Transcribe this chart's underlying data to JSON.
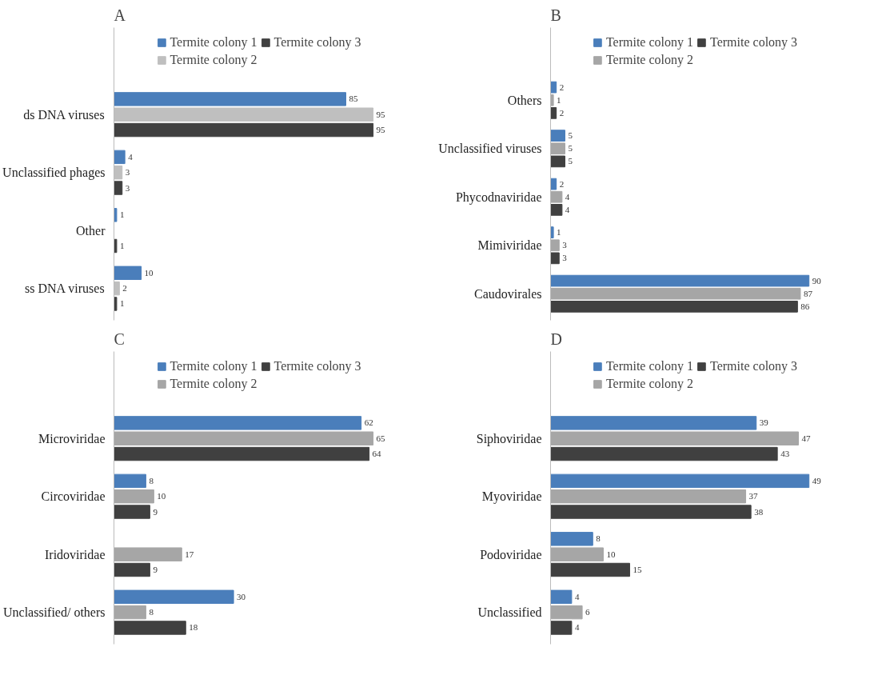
{
  "chart_data": [
    {
      "type": "bar",
      "orientation": "horizontal",
      "title": "A",
      "categories": [
        "ds DNA viruses",
        "Unclassified phages",
        "Other",
        "ss DNA viruses"
      ],
      "data_labels": true,
      "legend": "top",
      "grid": false,
      "series": [
        {
          "name": "Termite colony 1",
          "color": "#4a7ebb",
          "values": [
            85,
            4,
            1,
            10
          ]
        },
        {
          "name": "Termite colony 2",
          "color": "#bfbfbf",
          "values": [
            95,
            3,
            null,
            2
          ]
        },
        {
          "name": "Termite colony 3",
          "color": "#404040",
          "values": [
            95,
            3,
            1,
            1
          ]
        }
      ]
    },
    {
      "type": "bar",
      "orientation": "horizontal",
      "title": "B",
      "categories": [
        "Others",
        "Unclassified viruses",
        "Phycodnaviridae",
        "Mimiviridae",
        "Caudovirales"
      ],
      "data_labels": true,
      "legend": "top",
      "grid": false,
      "series": [
        {
          "name": "Termite colony 1",
          "color": "#4a7ebb",
          "values": [
            2,
            5,
            2,
            1,
            90
          ]
        },
        {
          "name": "Termite colony 2",
          "color": "#a6a6a6",
          "values": [
            1,
            5,
            4,
            3,
            87
          ]
        },
        {
          "name": "Termite colony 3",
          "color": "#404040",
          "values": [
            2,
            5,
            4,
            3,
            86
          ]
        }
      ]
    },
    {
      "type": "bar",
      "orientation": "horizontal",
      "title": "C",
      "categories": [
        "Microviridae",
        "Circoviridae",
        "Iridoviridae",
        "Unclassified/ others"
      ],
      "data_labels": true,
      "legend": "top",
      "grid": false,
      "series": [
        {
          "name": "Termite colony 1",
          "color": "#4a7ebb",
          "values": [
            62,
            8,
            null,
            30
          ]
        },
        {
          "name": "Termite colony 2",
          "color": "#a6a6a6",
          "values": [
            65,
            10,
            17,
            8
          ]
        },
        {
          "name": "Termite colony 3",
          "color": "#404040",
          "values": [
            64,
            9,
            9,
            18
          ]
        }
      ]
    },
    {
      "type": "bar",
      "orientation": "horizontal",
      "title": "D",
      "categories": [
        "Siphoviridae",
        "Myoviridae",
        "Podoviridae",
        "Unclassified"
      ],
      "data_labels": true,
      "legend": "top",
      "grid": false,
      "series": [
        {
          "name": "Termite colony 1",
          "color": "#4a7ebb",
          "values": [
            39,
            49,
            8,
            4
          ]
        },
        {
          "name": "Termite colony 2",
          "color": "#a6a6a6",
          "values": [
            47,
            37,
            10,
            6
          ]
        },
        {
          "name": "Termite colony 3",
          "color": "#404040",
          "values": [
            43,
            38,
            15,
            4
          ]
        }
      ]
    }
  ]
}
